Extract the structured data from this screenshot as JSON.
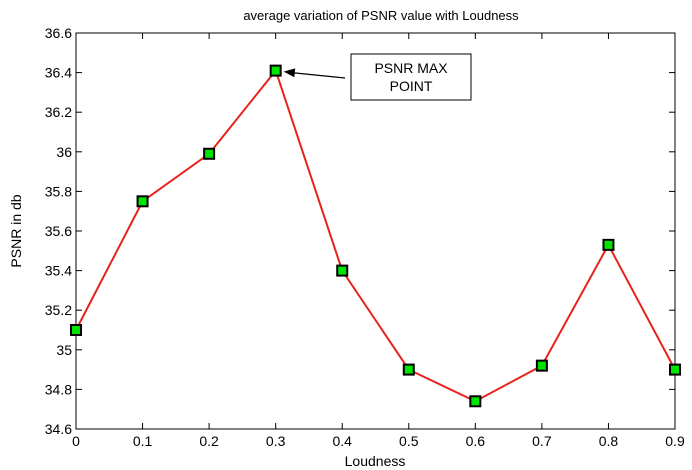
{
  "chart_data": {
    "type": "line",
    "title": "average variation of PSNR value with Loudness",
    "xlabel": "Loudness",
    "ylabel": "PSNR in db",
    "xlim": [
      0,
      0.9
    ],
    "ylim": [
      34.6,
      36.6
    ],
    "x_ticks": [
      "0",
      "0.1",
      "0.2",
      "0.3",
      "0.4",
      "0.5",
      "0.6",
      "0.7",
      "0.8",
      "0.9"
    ],
    "y_ticks": [
      "34.6",
      "34.8",
      "35",
      "35.2",
      "35.4",
      "35.6",
      "35.8",
      "36",
      "36.2",
      "36.4",
      "36.6"
    ],
    "grid": false,
    "series": [
      {
        "x": [
          0,
          0.1,
          0.2,
          0.3,
          0.4,
          0.5,
          0.6,
          0.7,
          0.8,
          0.9
        ],
        "y": [
          35.1,
          35.75,
          35.99,
          36.41,
          35.4,
          34.9,
          34.74,
          34.92,
          35.53,
          34.9
        ],
        "line_color": "#e8231e",
        "marker": "square",
        "marker_fill": "#00e400",
        "marker_edge": "#000000"
      }
    ],
    "annotation": {
      "lines": [
        "PSNR MAX",
        "POINT"
      ],
      "points_to": {
        "x": 0.3,
        "y": 36.41
      }
    }
  }
}
